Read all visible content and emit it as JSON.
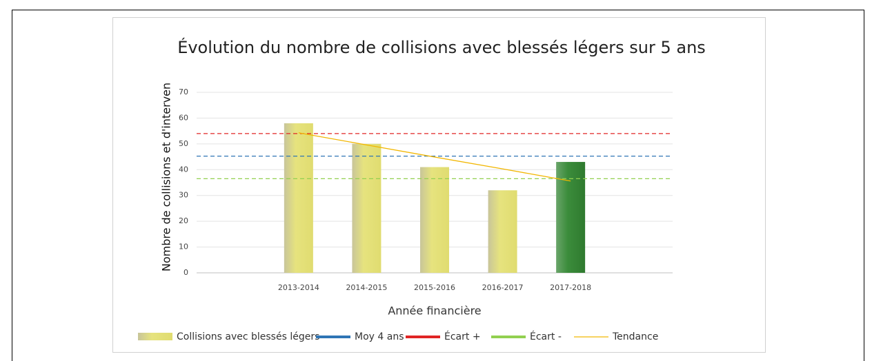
{
  "chart_data": {
    "type": "bar",
    "title": "Évolution du nombre de collisions avec blessés légers sur 5 ans",
    "x_label": "Année financière",
    "y_label": "Nombre de collisions et d'interven",
    "categories": [
      null,
      "2013-2014",
      "2014-2015",
      "2015-2016",
      "2016-2017",
      "2017-2018",
      null
    ],
    "series": [
      {
        "name": "Collisions avec blessés légers",
        "type": "bar",
        "color": "#e3e07c",
        "colors": [
          null,
          "#e3e07c",
          "#e3e07c",
          "#e3e07c",
          "#e3e07c",
          "#3b8c3b",
          null
        ],
        "values": [
          null,
          58,
          50,
          41,
          32,
          43,
          null
        ]
      },
      {
        "name": "Moy 4 ans",
        "type": "hline",
        "color": "#2f75b5",
        "value": 45.25
      },
      {
        "name": "Écart +",
        "type": "hline",
        "color": "#e02424",
        "value": 54
      },
      {
        "name": "Écart -",
        "type": "hline",
        "color": "#92d050",
        "value": 36.5
      },
      {
        "name": "Tendance",
        "type": "line",
        "color": "#f2b600",
        "values": [
          null,
          54.3,
          49.6,
          44.9,
          40.3,
          35.6,
          null
        ]
      }
    ],
    "ylim": [
      0,
      70
    ],
    "yticks": [
      0,
      10,
      20,
      30,
      40,
      50,
      60,
      70
    ],
    "grid": true,
    "legend": "bottom"
  }
}
